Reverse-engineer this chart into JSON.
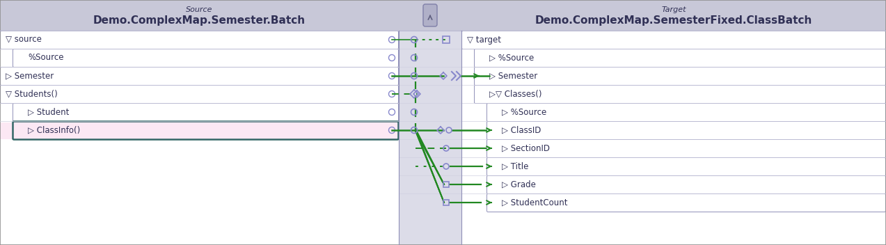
{
  "bg_color": "#e8e8f0",
  "header_bg": "#c8c8d8",
  "panel_bg": "#ffffff",
  "border_color": "#9090b8",
  "text_color": "#303055",
  "green_line": "#228822",
  "pink_fill": "#fce8f4",
  "pink_border": "#336666",
  "connector_circle": "#8888cc",
  "source_header_label": "Source",
  "source_header_title": "Demo.ComplexMap.Semester.Batch",
  "target_header_label": "Target",
  "target_header_title": "Demo.ComplexMap.SemesterFixed.ClassBatch",
  "source_rows": [
    {
      "label": "▽ source",
      "indent": 0,
      "highlight": false
    },
    {
      "label": "%Source",
      "indent": 1,
      "highlight": false
    },
    {
      "label": "▷ Semester",
      "indent": 0,
      "highlight": false
    },
    {
      "label": "▽ Students()",
      "indent": 0,
      "highlight": false
    },
    {
      "label": "▷ Student",
      "indent": 1,
      "highlight": false
    },
    {
      "label": "▷ ClassInfo()",
      "indent": 1,
      "highlight": true
    }
  ],
  "target_rows": [
    {
      "label": "▽ target",
      "indent": 0
    },
    {
      "label": "▷ %Source",
      "indent": 1
    },
    {
      "label": "▷ Semester",
      "indent": 1
    },
    {
      "label": "▷▽ Classes()",
      "indent": 1
    },
    {
      "label": "▷ %Source",
      "indent": 2
    },
    {
      "label": "▷ ClassID",
      "indent": 2
    },
    {
      "label": "▷ SectionID",
      "indent": 2
    },
    {
      "label": "▷ Title",
      "indent": 2
    },
    {
      "label": "▷ Grade",
      "indent": 2
    },
    {
      "label": "▷ StudentCount",
      "indent": 2
    }
  ],
  "fig_width": 12.73,
  "fig_height": 3.52,
  "dpi": 100
}
